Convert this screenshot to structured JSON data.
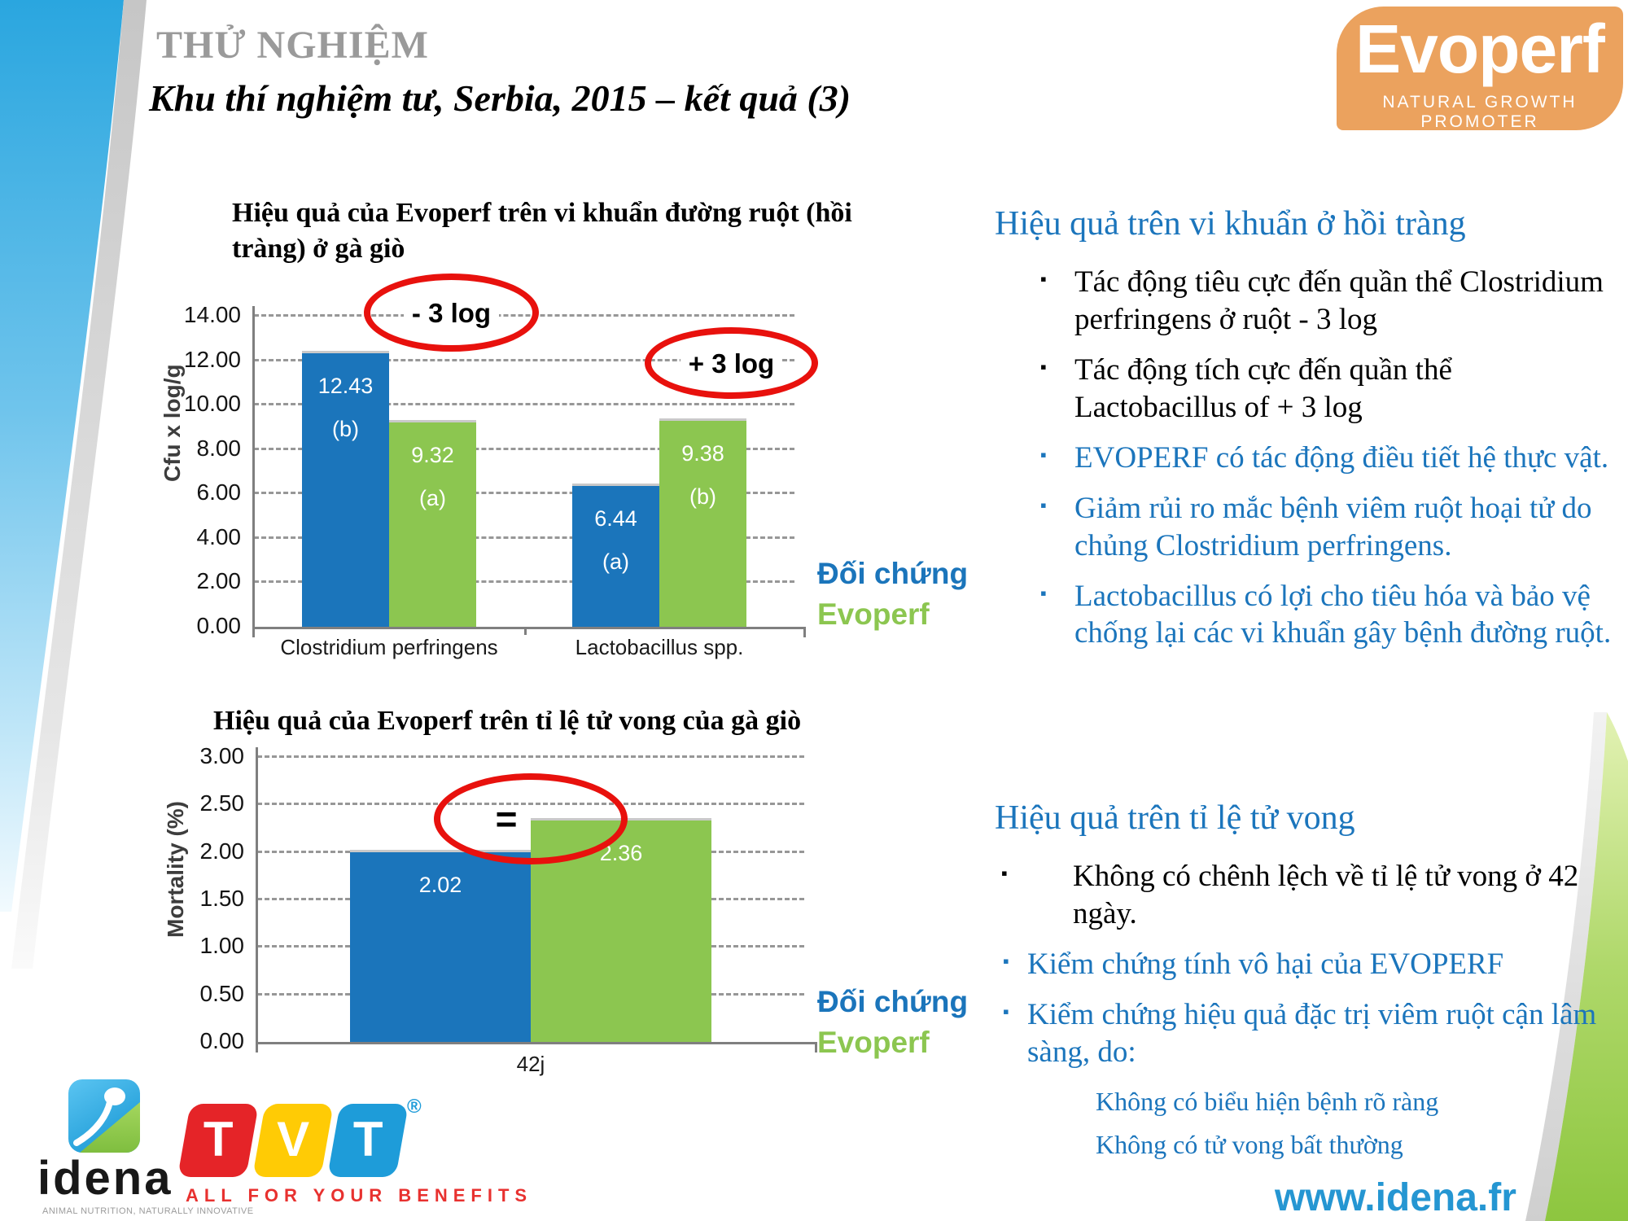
{
  "slide": {
    "kicker": "THỬ NGHIỆM",
    "title": "Khu thí nghiệm tư, Serbia, 2015 – kết quả (3)"
  },
  "evoperf_logo": {
    "name": "Evoperf",
    "tagline": "NATURAL GROWTH PROMOTER"
  },
  "colors": {
    "accent_blue": "#1B75BC",
    "bar_blue": "#1B75BB",
    "bar_green": "#8CC650",
    "annotation_red": "#E8110D",
    "kicker_gray": "#9A9A9A",
    "website_blue": "#2596D2",
    "evoperf_orange": "#EBA25E"
  },
  "chart_data": [
    {
      "type": "bar",
      "title": "Hiệu quả của Evoperf trên vi khuẩn đường ruột (hồi tràng) ở gà giò",
      "ylabel": "Cfu x log/g",
      "xlabel": "",
      "ylim": [
        0,
        14
      ],
      "ytick_step": 2,
      "ytick_decimals": 2,
      "grid": true,
      "legend_position": "right",
      "categories": [
        "Clostridium perfringens",
        "Lactobacillus spp."
      ],
      "series": [
        {
          "name": "Đối chứng",
          "color": "#1B75BB",
          "values": [
            12.43,
            6.44
          ],
          "stat_labels": [
            "(b)",
            "(a)"
          ]
        },
        {
          "name": "Evoperf",
          "color": "#8CC650",
          "values": [
            9.32,
            9.38
          ],
          "stat_labels": [
            "(a)",
            "(b)"
          ]
        }
      ],
      "annotations": [
        {
          "shape": "ellipse",
          "text": "- 3 log"
        },
        {
          "shape": "ellipse",
          "text": "+ 3 log"
        }
      ]
    },
    {
      "type": "bar",
      "title": "Hiệu quả của Evoperf trên tỉ lệ tử vong của gà giò",
      "ylabel": "Mortality (%)",
      "xlabel": "",
      "ylim": [
        0,
        3
      ],
      "ytick_step": 0.5,
      "ytick_decimals": 2,
      "grid": true,
      "legend_position": "right",
      "categories": [
        "42j"
      ],
      "series": [
        {
          "name": "Đối chứng",
          "color": "#1B75BB",
          "values": [
            2.02
          ],
          "stat_labels": [
            ""
          ]
        },
        {
          "name": "Evoperf",
          "color": "#8CC650",
          "values": [
            2.36
          ],
          "stat_labels": [
            ""
          ]
        }
      ],
      "annotations": [
        {
          "shape": "ellipse",
          "text": "="
        }
      ]
    }
  ],
  "right_panel": {
    "sections": [
      {
        "heading": "Hiệu quả trên vi khuẩn ở hồi tràng",
        "bullets": [
          {
            "text": "Tác động tiêu cực đến quần thể Clostridium perfringens ở ruột - 3 log",
            "variant": "dark",
            "indent": "mid"
          },
          {
            "text": "Tác động tích cực đến quần thể Lactobacillus of + 3 log",
            "variant": "dark",
            "indent": "mid"
          },
          {
            "text": "EVOPERF có tác động điều tiết hệ thực vật.",
            "variant": "accent",
            "indent": "mid"
          },
          {
            "text": "Giảm rủi ro mắc bệnh viêm ruột hoại tử do chủng Clostridium perfringens.",
            "variant": "accent",
            "indent": "mid"
          },
          {
            "text": "Lactobacillus có lợi cho tiêu hóa và bảo vệ chống lại các vi khuẩn gây bệnh đường ruột.",
            "variant": "accent",
            "indent": "mid"
          }
        ],
        "sub_bullets": []
      },
      {
        "heading": "Hiệu quả trên tỉ lệ tử vong",
        "bullets": [
          {
            "text": "Không có chênh lệch về tỉ lệ tử vong ở 42 ngày.",
            "variant": "dark",
            "indent": "wide"
          },
          {
            "text": "Kiểm chứng tính vô hại của EVOPERF",
            "variant": "accent",
            "indent": "narrow"
          },
          {
            "text": "Kiểm chứng hiệu quả đặc trị viêm ruột cận lâm sàng, do:",
            "variant": "accent",
            "indent": "narrow"
          }
        ],
        "sub_bullets": [
          "Không có biểu hiện bệnh rõ ràng",
          "Không có tử vong bất thường"
        ]
      }
    ]
  },
  "footer": {
    "idena": {
      "wordmark": "idena",
      "tagline": "ANIMAL NUTRITION, NATURALLY INNOVATIVE"
    },
    "tvt": {
      "letters": [
        "T",
        "V",
        "T"
      ],
      "registered": "®",
      "slogan": "ALL FOR YOUR BENEFITS"
    },
    "website": "www.idena.fr"
  }
}
